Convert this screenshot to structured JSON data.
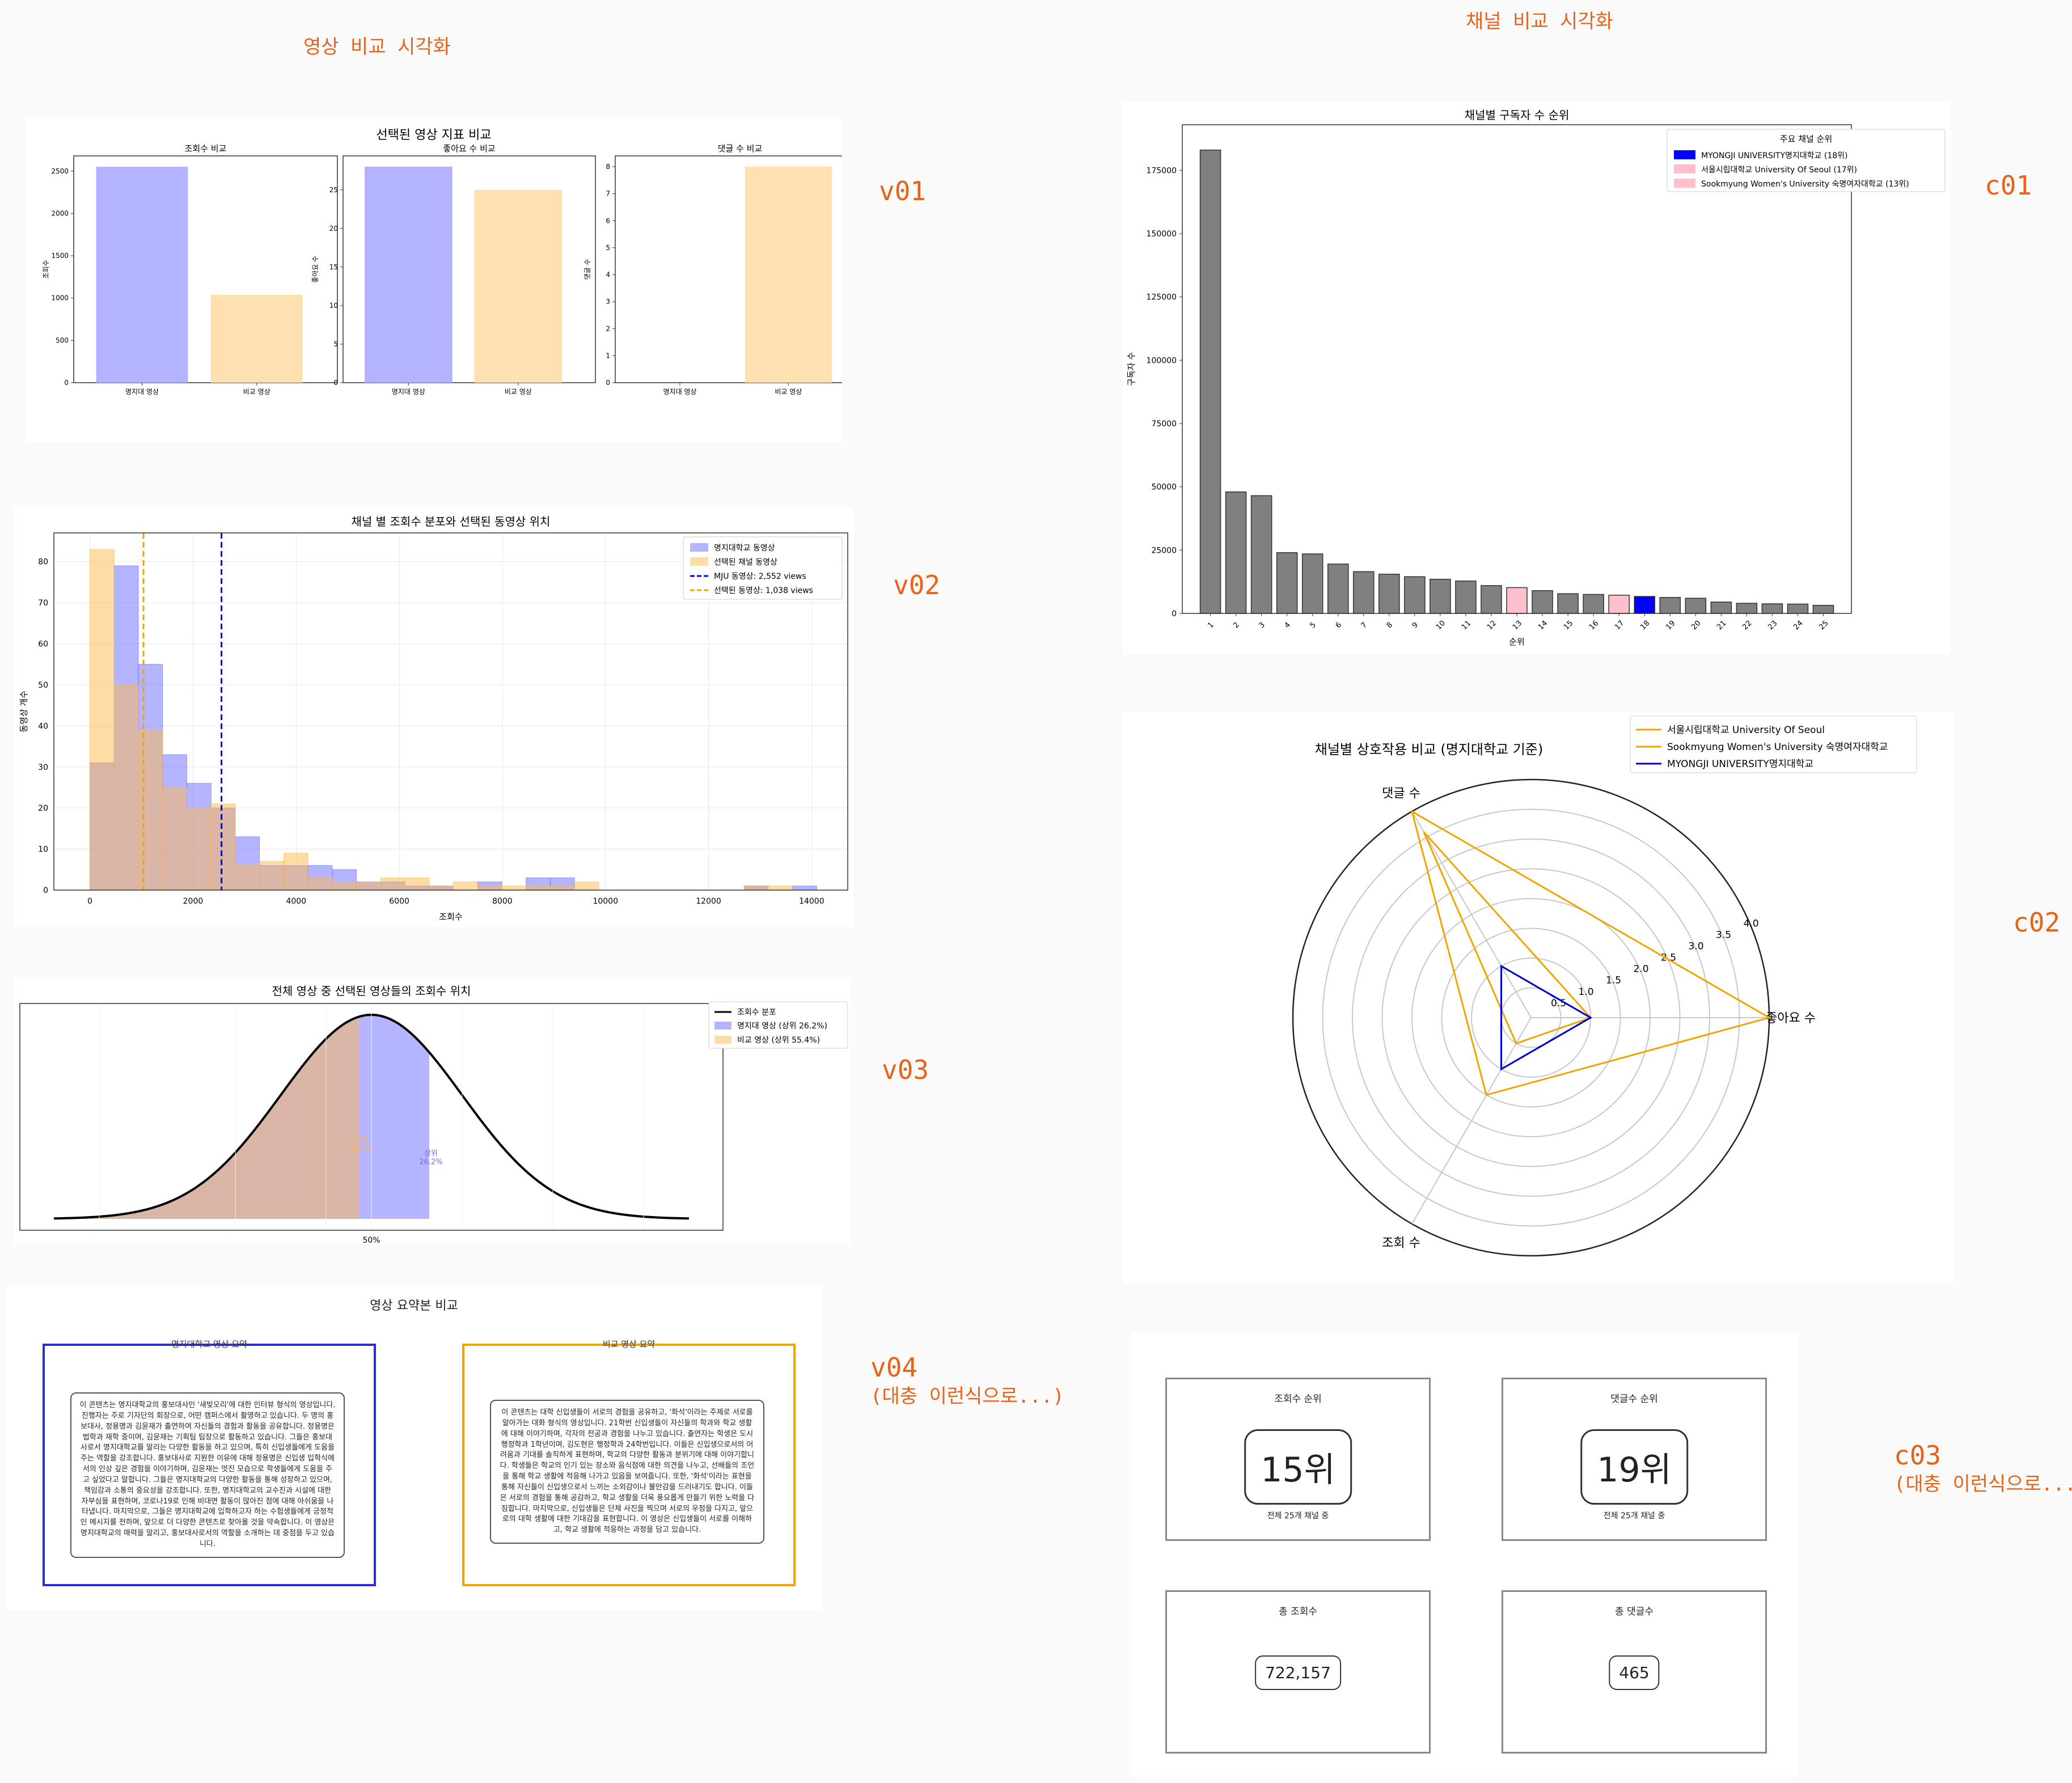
{
  "headers": {
    "video": "영상 비교 시각화",
    "channel": "채널 비교 시각화"
  },
  "tags": {
    "v01": "v01",
    "v02": "v02",
    "v03": "v03",
    "v04": "v04",
    "v04_note": "(대충 이런식으로...)",
    "c01": "c01",
    "c02": "c02",
    "c03": "c03",
    "c03_note": "(대충 이런식으로...)"
  },
  "summary": {
    "title": "영상 요약본 비교",
    "left_title": "명지대학교 영상 요약",
    "right_title": "비교 영상 요약",
    "left_text": "이 콘텐츠는 명지대학교의 홍보대사인 '새빛오리'에 대한 인터뷰 형식의 영상입니다. 진행자는 주로 기자단의 회장으로, 어떤 캠퍼스에서 촬영하고 있습니다. 두 명의 홍보대사, 정용명과 김윤재가 출연하여 자신들의 경험과 활동을 공유합니다. 정용명은 법학과 재학 중이며, 김윤재는 기획팀 팀장으로 활동하고 있습니다. 그들은 홍보대사로서 명지대학교를 알리는 다양한 활동을 하고 있으며, 특히 신입생들에게 도움을 주는 역할을 강조합니다. 홍보대사로 지원한 이유에 대해 정용명은 신입생 입학식에서의 인상 깊은 경험을 이야기하며, 김윤재는 멋진 모습으로 학생들에게 도움을 주고 싶었다고 말합니다. 그들은 명지대학교의 다양한 활동을 통해 성장하고 있으며, 책임감과 소통의 중요성을 강조합니다. 또한, 명지대학교의 교수진과 시설에 대한 자부심을 표현하며, 코로나19로 인해 비대면 활동이 많아진 점에 대해 아쉬움을 나타냅니다. 마지막으로, 그들은 명지대학교에 입학하고자 하는 수험생들에게 긍정적인 메시지를 전하며, 앞으로 더 다양한 콘텐츠로 찾아올 것을 약속합니다. 이 영상은 명지대학교의 매력을 알리고, 홍보대사로서의 역할을 소개하는 데 중점을 두고 있습니다.",
    "right_text": "이 콘텐츠는 대학 신입생들이 서로의 경험을 공유하고, '화석'이라는 주제로 서로를 알아가는 대화 형식의 영상입니다. 21학번 신입생들이 자신들의 학과와 학교 생활에 대해 이야기하며, 각자의 전공과 경험을 나누고 있습니다. 출연자는 학생은 도시행정학과 1학년이며, 김도현은 행정학과 24학번입니다. 이들은 신입생으로서의 어려움과 기대를 솔직하게 표현하며, 학교의 다양한 활동과 분위기에 대해 이야기합니다. 학생들은 학교의 인기 있는 장소와 음식점에 대한 의견을 나누고, 선배들의 조언을 통해 학교 생활에 적응해 나가고 있음을 보여줍니다. 또한, '화석'이라는 표현을 통해 자신들이 신입생으로서 느끼는 소외감이나 불안감을 드러내기도 합니다. 이들은 서로의 경험을 통해 공감하고, 학교 생활을 더욱 풍요롭게 만들기 위한 노력을 다짐합니다. 마지막으로, 신입생들은 단체 사진을 찍으며 서로의 우정을 다지고, 앞으로의 대학 생활에 대한 기대감을 표현합니다. 이 영상은 신입생들이 서로를 이해하고, 학교 생활에 적응하는 과정을 담고 있습니다."
  },
  "cards": [
    {
      "title": "조회수 순위",
      "value": "15위",
      "sub": "전체 25개 채널 중"
    },
    {
      "title": "댓글수 순위",
      "value": "19위",
      "sub": "전체 25개 채널 중"
    },
    {
      "title": "총 조회수",
      "value": "722,157",
      "sub": ""
    },
    {
      "title": "총 댓글수",
      "value": "465",
      "sub": ""
    }
  ],
  "chart_data": [
    {
      "id": "v01",
      "type": "bar",
      "title": "선택된 영상 지표 비교",
      "subplots": [
        {
          "title": "조회수 비교",
          "ylabel": "조회수",
          "categories": [
            "명지대 영상",
            "비교 영상"
          ],
          "values": [
            2552,
            1038
          ],
          "ylim": [
            0,
            2680
          ],
          "yticks": [
            0,
            500,
            1000,
            1500,
            2000,
            2500
          ],
          "colors": [
            "#b3b3ff",
            "#ffe0b0"
          ]
        },
        {
          "title": "좋아요 수 비교",
          "ylabel": "좋아요 수",
          "categories": [
            "명지대 영상",
            "비교 영상"
          ],
          "values": [
            28,
            25
          ],
          "ylim": [
            0,
            29.4
          ],
          "yticks": [
            0,
            5,
            10,
            15,
            20,
            25
          ],
          "colors": [
            "#b3b3ff",
            "#ffe0b0"
          ]
        },
        {
          "title": "댓글 수 비교",
          "ylabel": "댓글 수",
          "categories": [
            "명지대 영상",
            "비교 영상"
          ],
          "values": [
            0,
            8
          ],
          "ylim": [
            0,
            8.4
          ],
          "yticks": [
            0,
            1,
            2,
            3,
            4,
            5,
            6,
            7,
            8
          ],
          "colors": [
            "#b3b3ff",
            "#ffe0b0"
          ]
        }
      ]
    },
    {
      "id": "v02",
      "type": "histogram",
      "title": "채널 별 조회수 분포와 선택된 동영상 위치",
      "xlabel": "조회수",
      "ylabel": "동영상 개수",
      "xlim": [
        -700,
        14700
      ],
      "ylim": [
        0,
        87
      ],
      "xticks": [
        0,
        2000,
        4000,
        6000,
        8000,
        10000,
        12000,
        14000
      ],
      "yticks": [
        0,
        10,
        20,
        30,
        40,
        50,
        60,
        70,
        80
      ],
      "series": [
        {
          "name": "명지대학교 동영상",
          "color": "#6b6bff",
          "bins": [
            [
              0,
              470,
              31
            ],
            [
              470,
              940,
              79
            ],
            [
              940,
              1410,
              55
            ],
            [
              1410,
              1880,
              33
            ],
            [
              1880,
              2350,
              26
            ],
            [
              2350,
              2820,
              20
            ],
            [
              2820,
              3290,
              13
            ],
            [
              3290,
              3760,
              6
            ],
            [
              3760,
              4230,
              6
            ],
            [
              4230,
              4700,
              6
            ],
            [
              4700,
              5170,
              5
            ],
            [
              5170,
              5640,
              2
            ],
            [
              5640,
              6110,
              2
            ],
            [
              6110,
              6580,
              1
            ],
            [
              6580,
              7050,
              1
            ],
            [
              7520,
              7990,
              2
            ],
            [
              8460,
              8930,
              3
            ],
            [
              8930,
              9400,
              3
            ],
            [
              12690,
              13160,
              1
            ],
            [
              13630,
              14100,
              1
            ]
          ]
        },
        {
          "name": "선택된 채널 동영상",
          "color": "#ffb84d",
          "bins": [
            [
              0,
              470,
              83
            ],
            [
              470,
              940,
              50
            ],
            [
              940,
              1410,
              39
            ],
            [
              1410,
              1880,
              25
            ],
            [
              1880,
              2350,
              20
            ],
            [
              2350,
              2820,
              21
            ],
            [
              2820,
              3290,
              6
            ],
            [
              3290,
              3760,
              7
            ],
            [
              3760,
              4230,
              9
            ],
            [
              4230,
              4700,
              3
            ],
            [
              4700,
              5170,
              2
            ],
            [
              5170,
              5640,
              2
            ],
            [
              5640,
              6110,
              3
            ],
            [
              6110,
              6580,
              3
            ],
            [
              6580,
              7050,
              1
            ],
            [
              7050,
              7520,
              2
            ],
            [
              7520,
              7990,
              1
            ],
            [
              7990,
              8460,
              1
            ],
            [
              8460,
              8930,
              1
            ],
            [
              8930,
              9400,
              1
            ],
            [
              9400,
              9870,
              2
            ],
            [
              12690,
              13160,
              1
            ],
            [
              13160,
              13630,
              1
            ]
          ]
        }
      ],
      "vlines": [
        {
          "name": "MJU 동영상: 2,552 views",
          "x": 2552,
          "color": "#0000ee"
        },
        {
          "name": "선택된 동영상: 1,038 views",
          "x": 1038,
          "color": "#f0a500"
        }
      ]
    },
    {
      "id": "v03",
      "type": "area",
      "title": "전체 영상 중 선택된 영상들의 조회수 위치",
      "curve_name": "조회수 분포",
      "xtick_label": "50%",
      "markers": [
        {
          "name": "명지대 영상 (상위 26.2%)",
          "label": "상위 26.2%",
          "color": "#6b6bff",
          "z": 0.637
        },
        {
          "name": "비교 영상 (상위 55.4%)",
          "label": "상위 55.4%",
          "color": "#ffb84d",
          "z": -0.136
        }
      ]
    },
    {
      "id": "c01",
      "type": "bar",
      "title": "채널별 구독자 수 순위",
      "xlabel": "순위",
      "ylabel": "구독자 수",
      "ylim": [
        0,
        193000
      ],
      "yticks": [
        0,
        25000,
        50000,
        75000,
        100000,
        125000,
        150000,
        175000
      ],
      "legend_title": "주요 채널 순위",
      "legend": [
        {
          "label": "MYONGJI UNIVERSITY명지대학교 (18위)",
          "color": "#0000ff"
        },
        {
          "label": "서울시립대학교 University Of Seoul (17위)",
          "color": "#ffc0cb"
        },
        {
          "label": "Sookmyung Women's University 숙명여자대학교 (13위)",
          "color": "#ffc0cb"
        }
      ],
      "categories": [
        "1",
        "2",
        "3",
        "4",
        "5",
        "6",
        "7",
        "8",
        "9",
        "10",
        "11",
        "12",
        "13",
        "14",
        "15",
        "16",
        "17",
        "18",
        "19",
        "20",
        "21",
        "22",
        "23",
        "24",
        "25"
      ],
      "values": [
        183000,
        48000,
        46500,
        24000,
        23500,
        19500,
        16500,
        15500,
        14500,
        13500,
        12800,
        11000,
        10200,
        9000,
        7800,
        7500,
        7200,
        6700,
        6300,
        6000,
        4500,
        4000,
        3800,
        3700,
        3200
      ],
      "highlight": {
        "13": "#ffc0cb",
        "17": "#ffc0cb",
        "18": "#0000ff"
      }
    },
    {
      "id": "c02",
      "type": "radar",
      "title": "채널별 상호작용 비교 (명지대학교 기준)",
      "axes": [
        "좋아요 수",
        "댓글 수",
        "조회 수"
      ],
      "rmax": 4.0,
      "rticks": [
        0.5,
        1.0,
        1.5,
        2.0,
        2.5,
        3.0,
        3.5,
        4.0
      ],
      "series": [
        {
          "name": "서울시립대학교 University Of Seoul",
          "color": "#f0a500",
          "values": [
            4.0,
            4.0,
            1.5
          ]
        },
        {
          "name": "Sookmyung Women's University 숙명여자대학교",
          "color": "#f0a500",
          "values": [
            1.0,
            3.6,
            0.5
          ]
        },
        {
          "name": "MYONGJI UNIVERSITY명지대학교",
          "color": "#0000cc",
          "values": [
            1.0,
            1.0,
            1.0
          ]
        }
      ]
    }
  ]
}
